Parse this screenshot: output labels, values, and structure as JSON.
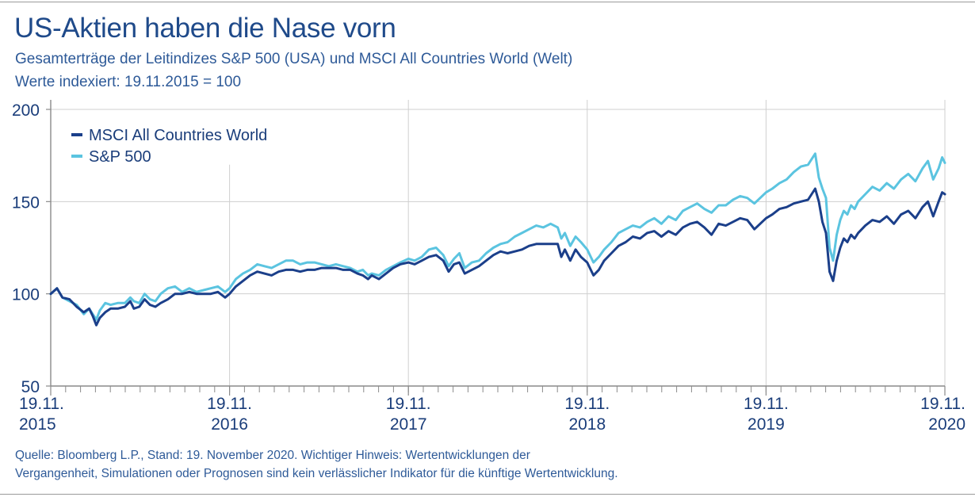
{
  "title": "US-Aktien haben die Nase vorn",
  "subtitle": "Gesamterträge der Leitindizes S&P 500 (USA) und MSCI All Countries World (Welt)",
  "subtitle2": "Werte indexiert: 19.11.2015 = 100",
  "source_line1": "Quelle: Bloomberg L.P., Stand: 19. November 2020. Wichtiger Hinweis: Wertentwicklungen der",
  "source_line2": "Vergangenheit, Simulationen oder Prognosen sind kein verlässlicher Indikator für die künftige Wertentwicklung.",
  "colors": {
    "msci": "#1b3f8a",
    "sp500": "#5bc4e0",
    "axis": "#8a8a8a",
    "grid": "#cfcfcf",
    "text": "#1a3d7a"
  },
  "chart_data": {
    "type": "line",
    "ylim": [
      50,
      200
    ],
    "xlim": [
      2015.885,
      2020.885
    ],
    "yticks": [
      50,
      100,
      150,
      200
    ],
    "xticks": [
      {
        "x": 2015.885,
        "top": "19.11.",
        "bottom": "2015"
      },
      {
        "x": 2016.885,
        "top": "19.11.",
        "bottom": "2016"
      },
      {
        "x": 2017.885,
        "top": "19.11.",
        "bottom": "2017"
      },
      {
        "x": 2018.885,
        "top": "19.11.",
        "bottom": "2018"
      },
      {
        "x": 2019.885,
        "top": "19.11.",
        "bottom": "2019"
      },
      {
        "x": 2020.885,
        "top": "19.11.",
        "bottom": "2020"
      }
    ],
    "legend_position": "top-left",
    "series": [
      {
        "name": "MSCI All Countries World",
        "color": "#1b3f8a",
        "points": [
          [
            2015.885,
            100
          ],
          [
            2015.92,
            103
          ],
          [
            2015.95,
            98
          ],
          [
            2015.99,
            97
          ],
          [
            2016.03,
            93
          ],
          [
            2016.07,
            90
          ],
          [
            2016.1,
            92
          ],
          [
            2016.12,
            88
          ],
          [
            2016.14,
            83
          ],
          [
            2016.16,
            87
          ],
          [
            2016.19,
            90
          ],
          [
            2016.22,
            92
          ],
          [
            2016.26,
            92
          ],
          [
            2016.3,
            93
          ],
          [
            2016.33,
            96
          ],
          [
            2016.35,
            92
          ],
          [
            2016.38,
            93
          ],
          [
            2016.41,
            97
          ],
          [
            2016.44,
            94
          ],
          [
            2016.47,
            93
          ],
          [
            2016.5,
            95
          ],
          [
            2016.54,
            97
          ],
          [
            2016.58,
            100
          ],
          [
            2016.62,
            100
          ],
          [
            2016.66,
            101
          ],
          [
            2016.7,
            100
          ],
          [
            2016.74,
            100
          ],
          [
            2016.78,
            100
          ],
          [
            2016.82,
            101
          ],
          [
            2016.86,
            98
          ],
          [
            2016.885,
            100
          ],
          [
            2016.92,
            104
          ],
          [
            2016.96,
            107
          ],
          [
            2017.0,
            110
          ],
          [
            2017.04,
            112
          ],
          [
            2017.08,
            111
          ],
          [
            2017.12,
            110
          ],
          [
            2017.16,
            112
          ],
          [
            2017.2,
            113
          ],
          [
            2017.24,
            113
          ],
          [
            2017.28,
            112
          ],
          [
            2017.32,
            113
          ],
          [
            2017.36,
            113
          ],
          [
            2017.4,
            114
          ],
          [
            2017.44,
            114
          ],
          [
            2017.48,
            114
          ],
          [
            2017.52,
            113
          ],
          [
            2017.56,
            113
          ],
          [
            2017.6,
            111
          ],
          [
            2017.63,
            110
          ],
          [
            2017.66,
            108
          ],
          [
            2017.68,
            110
          ],
          [
            2017.72,
            108
          ],
          [
            2017.76,
            111
          ],
          [
            2017.8,
            114
          ],
          [
            2017.84,
            116
          ],
          [
            2017.885,
            117
          ],
          [
            2017.92,
            116
          ],
          [
            2017.96,
            118
          ],
          [
            2018.0,
            120
          ],
          [
            2018.04,
            121
          ],
          [
            2018.08,
            118
          ],
          [
            2018.11,
            112
          ],
          [
            2018.14,
            116
          ],
          [
            2018.17,
            117
          ],
          [
            2018.2,
            111
          ],
          [
            2018.24,
            113
          ],
          [
            2018.28,
            115
          ],
          [
            2018.32,
            118
          ],
          [
            2018.36,
            121
          ],
          [
            2018.4,
            123
          ],
          [
            2018.44,
            122
          ],
          [
            2018.48,
            123
          ],
          [
            2018.52,
            124
          ],
          [
            2018.56,
            126
          ],
          [
            2018.6,
            127
          ],
          [
            2018.64,
            127
          ],
          [
            2018.68,
            127
          ],
          [
            2018.72,
            127
          ],
          [
            2018.74,
            120
          ],
          [
            2018.76,
            124
          ],
          [
            2018.79,
            118
          ],
          [
            2018.82,
            124
          ],
          [
            2018.85,
            120
          ],
          [
            2018.885,
            117
          ],
          [
            2018.92,
            110
          ],
          [
            2018.95,
            113
          ],
          [
            2018.98,
            118
          ],
          [
            2019.02,
            122
          ],
          [
            2019.06,
            126
          ],
          [
            2019.1,
            128
          ],
          [
            2019.14,
            131
          ],
          [
            2019.18,
            130
          ],
          [
            2019.22,
            133
          ],
          [
            2019.26,
            134
          ],
          [
            2019.3,
            131
          ],
          [
            2019.34,
            134
          ],
          [
            2019.38,
            132
          ],
          [
            2019.42,
            136
          ],
          [
            2019.46,
            138
          ],
          [
            2019.5,
            139
          ],
          [
            2019.54,
            136
          ],
          [
            2019.58,
            132
          ],
          [
            2019.62,
            138
          ],
          [
            2019.66,
            137
          ],
          [
            2019.7,
            139
          ],
          [
            2019.74,
            141
          ],
          [
            2019.78,
            140
          ],
          [
            2019.82,
            135
          ],
          [
            2019.885,
            141
          ],
          [
            2019.92,
            143
          ],
          [
            2019.96,
            146
          ],
          [
            2020.0,
            147
          ],
          [
            2020.04,
            149
          ],
          [
            2020.08,
            150
          ],
          [
            2020.12,
            151
          ],
          [
            2020.16,
            157
          ],
          [
            2020.18,
            150
          ],
          [
            2020.2,
            139
          ],
          [
            2020.22,
            133
          ],
          [
            2020.24,
            112
          ],
          [
            2020.26,
            107
          ],
          [
            2020.28,
            118
          ],
          [
            2020.3,
            125
          ],
          [
            2020.32,
            130
          ],
          [
            2020.34,
            128
          ],
          [
            2020.36,
            132
          ],
          [
            2020.38,
            130
          ],
          [
            2020.4,
            133
          ],
          [
            2020.44,
            137
          ],
          [
            2020.48,
            140
          ],
          [
            2020.52,
            139
          ],
          [
            2020.56,
            142
          ],
          [
            2020.6,
            138
          ],
          [
            2020.64,
            143
          ],
          [
            2020.68,
            145
          ],
          [
            2020.72,
            141
          ],
          [
            2020.76,
            147
          ],
          [
            2020.79,
            150
          ],
          [
            2020.82,
            142
          ],
          [
            2020.85,
            150
          ],
          [
            2020.87,
            155
          ],
          [
            2020.885,
            154
          ]
        ]
      },
      {
        "name": "S&P 500",
        "color": "#5bc4e0",
        "points": [
          [
            2015.885,
            100
          ],
          [
            2015.92,
            103
          ],
          [
            2015.95,
            98
          ],
          [
            2015.99,
            96
          ],
          [
            2016.03,
            94
          ],
          [
            2016.07,
            89
          ],
          [
            2016.1,
            92
          ],
          [
            2016.12,
            89
          ],
          [
            2016.14,
            86
          ],
          [
            2016.16,
            91
          ],
          [
            2016.19,
            95
          ],
          [
            2016.22,
            94
          ],
          [
            2016.26,
            95
          ],
          [
            2016.3,
            95
          ],
          [
            2016.33,
            98
          ],
          [
            2016.35,
            96
          ],
          [
            2016.38,
            95
          ],
          [
            2016.41,
            100
          ],
          [
            2016.44,
            97
          ],
          [
            2016.47,
            96
          ],
          [
            2016.5,
            100
          ],
          [
            2016.54,
            103
          ],
          [
            2016.58,
            104
          ],
          [
            2016.62,
            101
          ],
          [
            2016.66,
            103
          ],
          [
            2016.7,
            101
          ],
          [
            2016.74,
            102
          ],
          [
            2016.78,
            103
          ],
          [
            2016.82,
            104
          ],
          [
            2016.86,
            101
          ],
          [
            2016.885,
            103
          ],
          [
            2016.92,
            108
          ],
          [
            2016.96,
            111
          ],
          [
            2017.0,
            113
          ],
          [
            2017.04,
            116
          ],
          [
            2017.08,
            115
          ],
          [
            2017.12,
            114
          ],
          [
            2017.16,
            116
          ],
          [
            2017.2,
            118
          ],
          [
            2017.24,
            118
          ],
          [
            2017.28,
            116
          ],
          [
            2017.32,
            117
          ],
          [
            2017.36,
            117
          ],
          [
            2017.4,
            116
          ],
          [
            2017.44,
            115
          ],
          [
            2017.48,
            116
          ],
          [
            2017.52,
            115
          ],
          [
            2017.56,
            114
          ],
          [
            2017.6,
            112
          ],
          [
            2017.63,
            113
          ],
          [
            2017.66,
            110
          ],
          [
            2017.68,
            111
          ],
          [
            2017.72,
            110
          ],
          [
            2017.76,
            113
          ],
          [
            2017.8,
            115
          ],
          [
            2017.84,
            117
          ],
          [
            2017.885,
            119
          ],
          [
            2017.92,
            118
          ],
          [
            2017.96,
            120
          ],
          [
            2018.0,
            124
          ],
          [
            2018.04,
            125
          ],
          [
            2018.08,
            121
          ],
          [
            2018.11,
            115
          ],
          [
            2018.14,
            119
          ],
          [
            2018.17,
            122
          ],
          [
            2018.2,
            114
          ],
          [
            2018.24,
            117
          ],
          [
            2018.28,
            118
          ],
          [
            2018.32,
            122
          ],
          [
            2018.36,
            125
          ],
          [
            2018.4,
            127
          ],
          [
            2018.44,
            128
          ],
          [
            2018.48,
            131
          ],
          [
            2018.52,
            133
          ],
          [
            2018.56,
            135
          ],
          [
            2018.6,
            137
          ],
          [
            2018.64,
            136
          ],
          [
            2018.68,
            138
          ],
          [
            2018.72,
            136
          ],
          [
            2018.74,
            130
          ],
          [
            2018.76,
            133
          ],
          [
            2018.79,
            126
          ],
          [
            2018.82,
            131
          ],
          [
            2018.85,
            128
          ],
          [
            2018.885,
            124
          ],
          [
            2018.92,
            117
          ],
          [
            2018.95,
            120
          ],
          [
            2018.98,
            124
          ],
          [
            2019.02,
            128
          ],
          [
            2019.06,
            133
          ],
          [
            2019.1,
            135
          ],
          [
            2019.14,
            137
          ],
          [
            2019.18,
            136
          ],
          [
            2019.22,
            139
          ],
          [
            2019.26,
            141
          ],
          [
            2019.3,
            138
          ],
          [
            2019.34,
            142
          ],
          [
            2019.38,
            140
          ],
          [
            2019.42,
            145
          ],
          [
            2019.46,
            147
          ],
          [
            2019.5,
            149
          ],
          [
            2019.54,
            146
          ],
          [
            2019.58,
            144
          ],
          [
            2019.62,
            148
          ],
          [
            2019.66,
            148
          ],
          [
            2019.7,
            151
          ],
          [
            2019.74,
            153
          ],
          [
            2019.78,
            152
          ],
          [
            2019.82,
            149
          ],
          [
            2019.885,
            155
          ],
          [
            2019.92,
            157
          ],
          [
            2019.96,
            160
          ],
          [
            2020.0,
            162
          ],
          [
            2020.04,
            166
          ],
          [
            2020.08,
            169
          ],
          [
            2020.12,
            170
          ],
          [
            2020.16,
            176
          ],
          [
            2020.18,
            163
          ],
          [
            2020.2,
            157
          ],
          [
            2020.22,
            152
          ],
          [
            2020.24,
            125
          ],
          [
            2020.26,
            118
          ],
          [
            2020.28,
            132
          ],
          [
            2020.3,
            140
          ],
          [
            2020.32,
            145
          ],
          [
            2020.34,
            143
          ],
          [
            2020.36,
            148
          ],
          [
            2020.38,
            146
          ],
          [
            2020.4,
            150
          ],
          [
            2020.44,
            154
          ],
          [
            2020.48,
            158
          ],
          [
            2020.52,
            156
          ],
          [
            2020.56,
            160
          ],
          [
            2020.6,
            157
          ],
          [
            2020.64,
            162
          ],
          [
            2020.68,
            165
          ],
          [
            2020.72,
            161
          ],
          [
            2020.76,
            168
          ],
          [
            2020.79,
            172
          ],
          [
            2020.82,
            162
          ],
          [
            2020.85,
            168
          ],
          [
            2020.87,
            174
          ],
          [
            2020.885,
            171
          ]
        ]
      }
    ]
  }
}
